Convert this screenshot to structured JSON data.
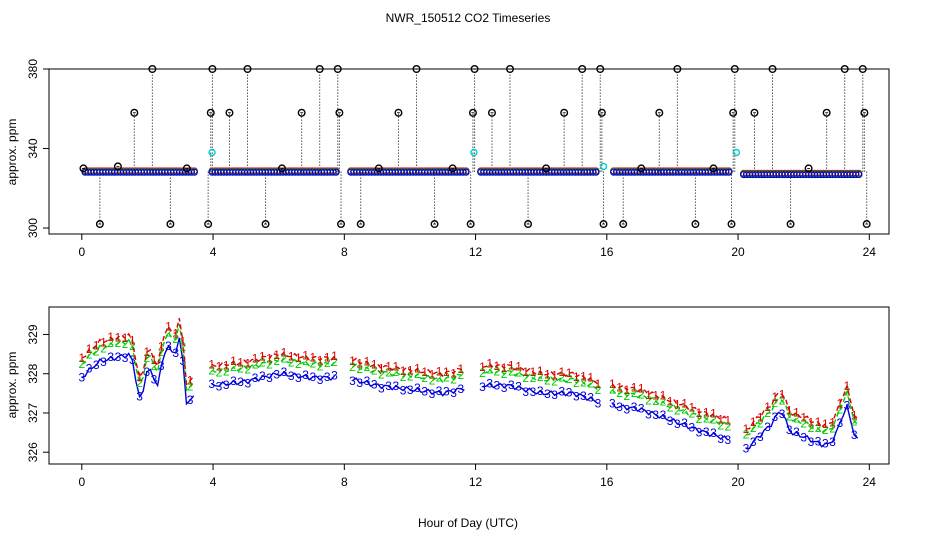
{
  "chart_data": [
    {
      "type": "scatter",
      "title": "NWR_150512  CO2 Timeseries",
      "xlabel": "",
      "ylabel": "approx. ppm",
      "xlim": [
        -1,
        24.6
      ],
      "ylim": [
        297,
        380
      ],
      "xticks": [
        "0",
        "4",
        "8",
        "12",
        "16",
        "20",
        "24"
      ],
      "yticks": [
        "300",
        "340",
        "380"
      ],
      "baseline_ppm": 328.4,
      "low_spike_ppm": 302,
      "spike_hours": [
        0.05,
        0.55,
        1.1,
        1.6,
        2.15,
        2.7,
        3.2,
        3.85,
        3.93,
        3.98,
        4.5,
        5.05,
        5.6,
        6.1,
        6.7,
        7.25,
        7.8,
        7.85,
        7.9,
        8.5,
        9.05,
        9.65,
        10.2,
        10.75,
        11.3,
        11.85,
        11.92,
        11.97,
        12.5,
        13.05,
        13.6,
        14.15,
        14.7,
        15.25,
        15.8,
        15.85,
        15.9,
        16.5,
        17.05,
        17.6,
        18.15,
        18.7,
        19.25,
        19.8,
        19.85,
        19.9,
        20.5,
        21.05,
        21.6,
        22.15,
        22.7,
        23.25,
        23.8,
        23.85,
        23.92
      ],
      "spike_values": [
        330,
        302,
        331,
        358,
        380,
        302,
        330,
        302,
        358,
        380,
        358,
        380,
        302,
        330,
        358,
        380,
        380,
        358,
        302,
        302,
        330,
        358,
        380,
        302,
        330,
        302,
        358,
        380,
        358,
        380,
        302,
        330,
        358,
        380,
        380,
        358,
        302,
        302,
        330,
        358,
        380,
        302,
        330,
        302,
        358,
        380,
        358,
        380,
        302,
        330,
        358,
        380,
        380,
        358,
        302
      ],
      "cyan_points": [
        {
          "x": 3.97,
          "y": 338
        },
        {
          "x": 11.95,
          "y": 338
        },
        {
          "x": 19.95,
          "y": 338
        },
        {
          "x": 15.9,
          "y": 331
        }
      ]
    },
    {
      "type": "line",
      "title": "",
      "xlabel": "Hour of Day (UTC)",
      "ylabel": "approx. ppm",
      "xlim": [
        -1,
        24.6
      ],
      "ylim": [
        325.7,
        329.7
      ],
      "xticks": [
        "0",
        "4",
        "8",
        "12",
        "16",
        "20",
        "24"
      ],
      "yticks": [
        "326",
        "327",
        "328",
        "329"
      ],
      "gaps": [
        [
          3.5,
          3.95
        ],
        [
          7.75,
          8.15
        ],
        [
          11.75,
          12.15
        ],
        [
          15.75,
          16.15
        ],
        [
          19.75,
          20.15
        ]
      ],
      "series": [
        {
          "name": "1",
          "color": "#dd0000",
          "offset": 0.25,
          "x": [
            0,
            0.5,
            1,
            1.5,
            1.8,
            2.0,
            2.3,
            2.6,
            2.8,
            3.0,
            3.2,
            3.5,
            4,
            5,
            6,
            7,
            8,
            9,
            10,
            11,
            12,
            13,
            14,
            15,
            16,
            17,
            18,
            19,
            19.8,
            20,
            20.5,
            21,
            21.3,
            21.6,
            22,
            22.5,
            22.8,
            23,
            23.3,
            23.6
          ],
          "values": [
            328.4,
            328.8,
            328.9,
            329.0,
            327.7,
            328.7,
            328.2,
            329.3,
            328.9,
            329.5,
            327.7,
            328.0,
            328.2,
            328.3,
            328.5,
            328.4,
            328.4,
            328.2,
            328.1,
            328.0,
            328.2,
            328.2,
            328.0,
            328.0,
            327.7,
            327.6,
            327.3,
            327.0,
            326.8,
            326.3,
            326.8,
            327.2,
            327.6,
            327.0,
            326.9,
            326.7,
            326.7,
            327.0,
            327.7,
            326.8
          ]
        }
      ],
      "series_meta": [
        {
          "name": "1",
          "color": "#dd0000",
          "offset": 0.25
        },
        {
          "name": "2",
          "color": "#00cc00",
          "offset": 0.1
        },
        {
          "name": "3",
          "color": "#0000dd",
          "offset": -0.25
        }
      ]
    }
  ]
}
